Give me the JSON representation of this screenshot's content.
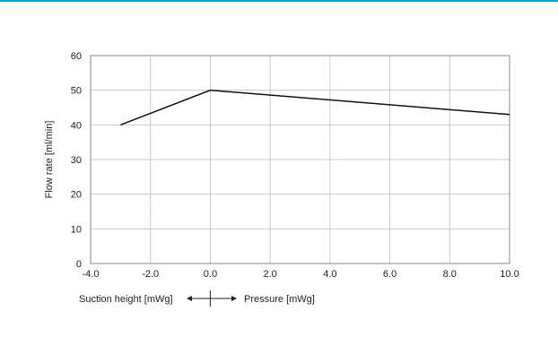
{
  "colors": {
    "accent": "#1aa0d8",
    "line": "#111111",
    "grid": "#c8c8c8"
  },
  "chart_data": {
    "type": "line",
    "title": "",
    "ylabel": "Flow rate [ml/min]",
    "xlabel_left": "Suction height [mWg]",
    "xlabel_right": "Pressure [mWg]",
    "xlim": [
      -4,
      10
    ],
    "ylim": [
      0,
      60
    ],
    "grid": true,
    "xticks": [
      "-4.0",
      "-2.0",
      "0.0",
      "2.0",
      "4.0",
      "6.0",
      "8.0",
      "10.0"
    ],
    "yticks": [
      "0",
      "10",
      "20",
      "30",
      "40",
      "50",
      "60"
    ],
    "series": [
      {
        "x": [
          -3,
          0,
          10
        ],
        "y": [
          40,
          50,
          43
        ]
      }
    ]
  }
}
